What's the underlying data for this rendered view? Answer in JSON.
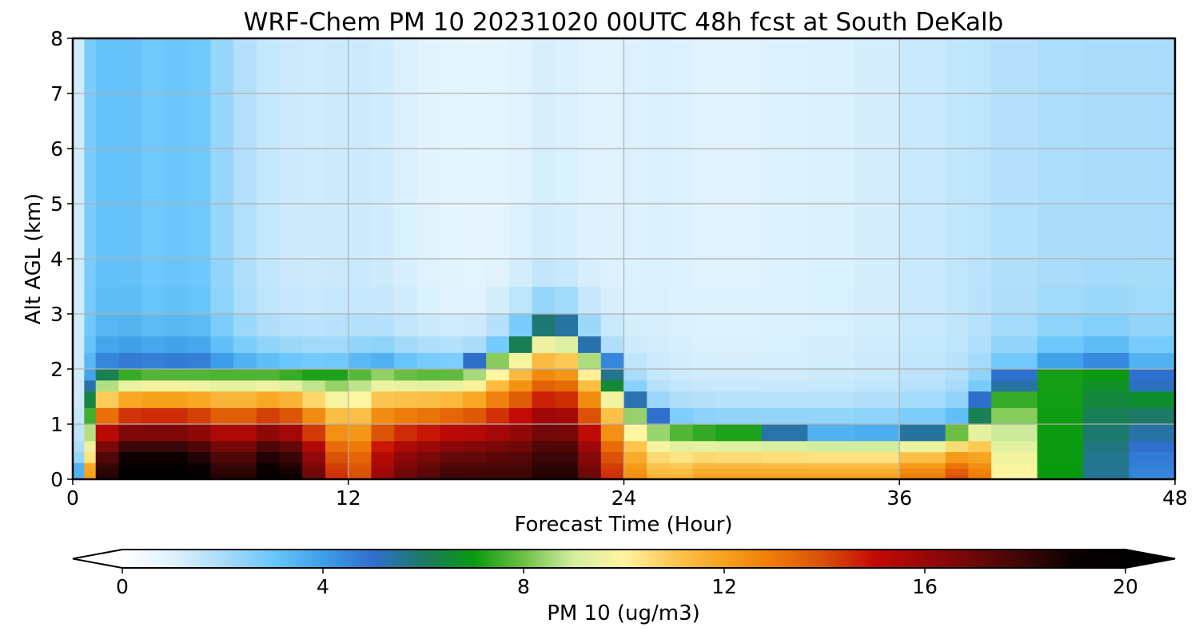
{
  "chart_data": {
    "type": "heatmap",
    "title": "WRF-Chem PM 10  20231020 00UTC 48h fcst at South DeKalb",
    "xlabel": "Forecast Time (Hour)",
    "ylabel": "Alt AGL (km)",
    "xlim": [
      0,
      48
    ],
    "ylim": [
      0,
      8
    ],
    "xticks": [
      "0",
      "12",
      "24",
      "36",
      "48"
    ],
    "yticks": [
      "0",
      "1",
      "2",
      "3",
      "4",
      "5",
      "6",
      "7",
      "8"
    ],
    "grid": true,
    "colorbar": {
      "label": "PM 10  (ug/m3)",
      "range": [
        0,
        20
      ],
      "ticks": [
        "0",
        "4",
        "8",
        "12",
        "16",
        "20"
      ],
      "extend": "both",
      "orientation": "horizontal"
    },
    "x": [
      0,
      0.5,
      1,
      2,
      3,
      4,
      5,
      6,
      7,
      8,
      9,
      10,
      11,
      12,
      13,
      14,
      15,
      16,
      17,
      18,
      19,
      20,
      21,
      22,
      23,
      24,
      25,
      26,
      27,
      28,
      30,
      32,
      34,
      36,
      38,
      39,
      40,
      42,
      44,
      46,
      48
    ],
    "y": [
      0,
      0.1,
      0.2,
      0.3,
      0.5,
      0.7,
      1.0,
      1.3,
      1.6,
      1.8,
      2.0,
      2.3,
      2.6,
      3.0,
      3.5,
      4.0,
      5.0,
      6.0,
      7.0,
      8.0
    ],
    "boundary_layer_top_km": [
      0,
      0.3,
      1.8,
      1.9,
      1.95,
      1.95,
      1.95,
      1.95,
      1.95,
      1.95,
      1.95,
      1.9,
      1.9,
      1.9,
      2.1,
      2.05,
      1.95,
      2.0,
      1.95,
      2.2,
      2.4,
      2.75,
      2.95,
      2.6,
      2.15,
      1.6,
      1.15,
      0.95,
      0.9,
      0.85,
      0.85,
      0.8,
      0.8,
      0.8,
      0.85,
      1.0,
      1.5,
      1.9,
      2.1,
      2.1,
      1.5
    ],
    "surface_pm10": [
      0,
      7,
      17,
      20,
      20,
      20,
      20,
      19,
      18,
      19,
      20,
      18,
      16,
      13,
      15,
      17,
      17,
      18,
      18,
      18,
      18,
      18,
      19,
      18,
      16,
      13,
      12,
      11,
      12,
      12,
      12,
      12,
      12,
      12,
      14,
      14,
      12,
      8,
      6,
      5,
      4
    ],
    "upper_pm10": [
      0,
      2.5,
      3,
      3.2,
      3,
      2.8,
      3.2,
      2.6,
      2.0,
      1.6,
      1.4,
      1.3,
      1.3,
      1.4,
      1.3,
      1.2,
      1.0,
      0.9,
      0.8,
      0.8,
      0.9,
      1.1,
      1.2,
      1.0,
      1.0,
      1.0,
      1.1,
      1.1,
      1.0,
      1.0,
      1.0,
      1.1,
      1.1,
      1.3,
      1.5,
      1.6,
      1.7,
      1.9,
      2.0,
      2.0,
      2.0
    ]
  },
  "colors": {
    "colormap": [
      "#ffffff",
      "#dff2fd",
      "#a9dcfa",
      "#6ac7fb",
      "#3d9fe8",
      "#2f6fcf",
      "#1b7a62",
      "#0a9a10",
      "#6ec045",
      "#d4eea0",
      "#fff5a0",
      "#fcc651",
      "#f7a21c",
      "#ee7a08",
      "#d94e07",
      "#c40a05",
      "#9a0808",
      "#6c0808",
      "#3b0606",
      "#0b0000",
      "#000000"
    ],
    "grid": "#b0b0b0",
    "frame": "#000000"
  }
}
